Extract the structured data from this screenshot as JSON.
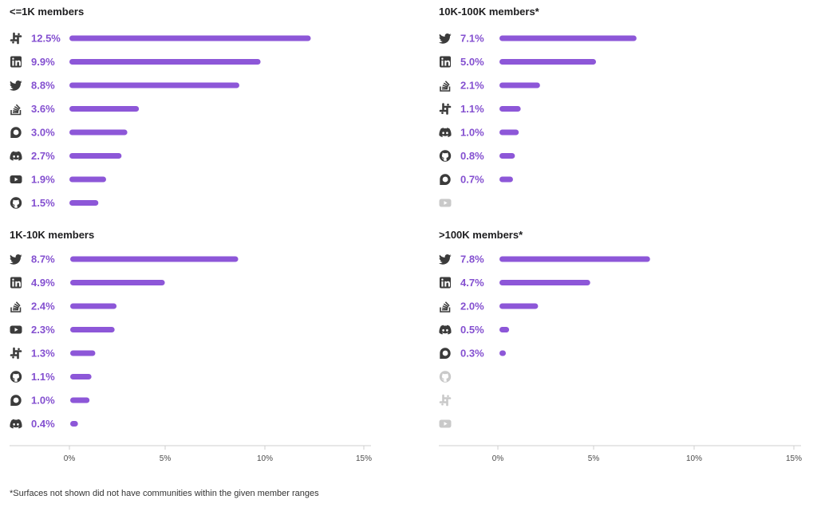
{
  "colors": {
    "bar": "#8d57d8",
    "label": "#8450d0",
    "icon": "#3b3b3b",
    "icon_faded": "#c9c9c9",
    "axis": "#cfcfcf"
  },
  "footnote": "*Surfaces not shown did not have communities within the given member ranges",
  "chart_data": [
    {
      "type": "bar",
      "orientation": "horizontal",
      "title": "<=1K members",
      "xlim": [
        0,
        15
      ],
      "xticks": [
        "0%",
        "5%",
        "10%",
        "15%"
      ],
      "show_axis": false,
      "rows": [
        {
          "surface": "slack-icon",
          "value": 12.5,
          "label": "12.5%"
        },
        {
          "surface": "linkedin-icon",
          "value": 9.9,
          "label": "9.9%"
        },
        {
          "surface": "twitter-icon",
          "value": 8.8,
          "label": "8.8%"
        },
        {
          "surface": "stackoverflow-icon",
          "value": 3.6,
          "label": "3.6%"
        },
        {
          "surface": "discourse-icon",
          "value": 3.0,
          "label": "3.0%"
        },
        {
          "surface": "discord-icon",
          "value": 2.7,
          "label": "2.7%"
        },
        {
          "surface": "youtube-icon",
          "value": 1.9,
          "label": "1.9%"
        },
        {
          "surface": "github-icon",
          "value": 1.5,
          "label": "1.5%"
        }
      ]
    },
    {
      "type": "bar",
      "orientation": "horizontal",
      "title": "10K-100K members*",
      "xlim": [
        0,
        15
      ],
      "xticks": [
        "0%",
        "5%",
        "10%",
        "15%"
      ],
      "show_axis": false,
      "rows": [
        {
          "surface": "twitter-icon",
          "value": 7.1,
          "label": "7.1%"
        },
        {
          "surface": "linkedin-icon",
          "value": 5.0,
          "label": "5.0%"
        },
        {
          "surface": "stackoverflow-icon",
          "value": 2.1,
          "label": "2.1%"
        },
        {
          "surface": "slack-icon",
          "value": 1.1,
          "label": "1.1%"
        },
        {
          "surface": "discord-icon",
          "value": 1.0,
          "label": "1.0%"
        },
        {
          "surface": "github-icon",
          "value": 0.8,
          "label": "0.8%"
        },
        {
          "surface": "discourse-icon",
          "value": 0.7,
          "label": "0.7%"
        },
        {
          "surface": "youtube-icon",
          "value": null,
          "label": ""
        }
      ]
    },
    {
      "type": "bar",
      "orientation": "horizontal",
      "title": "1K-10K members",
      "xlim": [
        0,
        15
      ],
      "xticks": [
        "0%",
        "5%",
        "10%",
        "15%"
      ],
      "show_axis": true,
      "rows": [
        {
          "surface": "twitter-icon",
          "value": 8.7,
          "label": "8.7%"
        },
        {
          "surface": "linkedin-icon",
          "value": 4.9,
          "label": "4.9%"
        },
        {
          "surface": "stackoverflow-icon",
          "value": 2.4,
          "label": "2.4%"
        },
        {
          "surface": "youtube-icon",
          "value": 2.3,
          "label": "2.3%"
        },
        {
          "surface": "slack-icon",
          "value": 1.3,
          "label": "1.3%"
        },
        {
          "surface": "github-icon",
          "value": 1.1,
          "label": "1.1%"
        },
        {
          "surface": "discourse-icon",
          "value": 1.0,
          "label": "1.0%"
        },
        {
          "surface": "discord-icon",
          "value": 0.4,
          "label": "0.4%"
        }
      ]
    },
    {
      "type": "bar",
      "orientation": "horizontal",
      "title": ">100K members*",
      "xlim": [
        0,
        15
      ],
      "xticks": [
        "0%",
        "5%",
        "10%",
        "15%"
      ],
      "show_axis": true,
      "rows": [
        {
          "surface": "twitter-icon",
          "value": 7.8,
          "label": "7.8%"
        },
        {
          "surface": "linkedin-icon",
          "value": 4.7,
          "label": "4.7%"
        },
        {
          "surface": "stackoverflow-icon",
          "value": 2.0,
          "label": "2.0%"
        },
        {
          "surface": "discord-icon",
          "value": 0.5,
          "label": "0.5%"
        },
        {
          "surface": "discourse-icon",
          "value": 0.3,
          "label": "0.3%"
        },
        {
          "surface": "github-icon",
          "value": null,
          "label": ""
        },
        {
          "surface": "slack-icon",
          "value": null,
          "label": ""
        },
        {
          "surface": "youtube-icon",
          "value": null,
          "label": ""
        }
      ]
    }
  ]
}
